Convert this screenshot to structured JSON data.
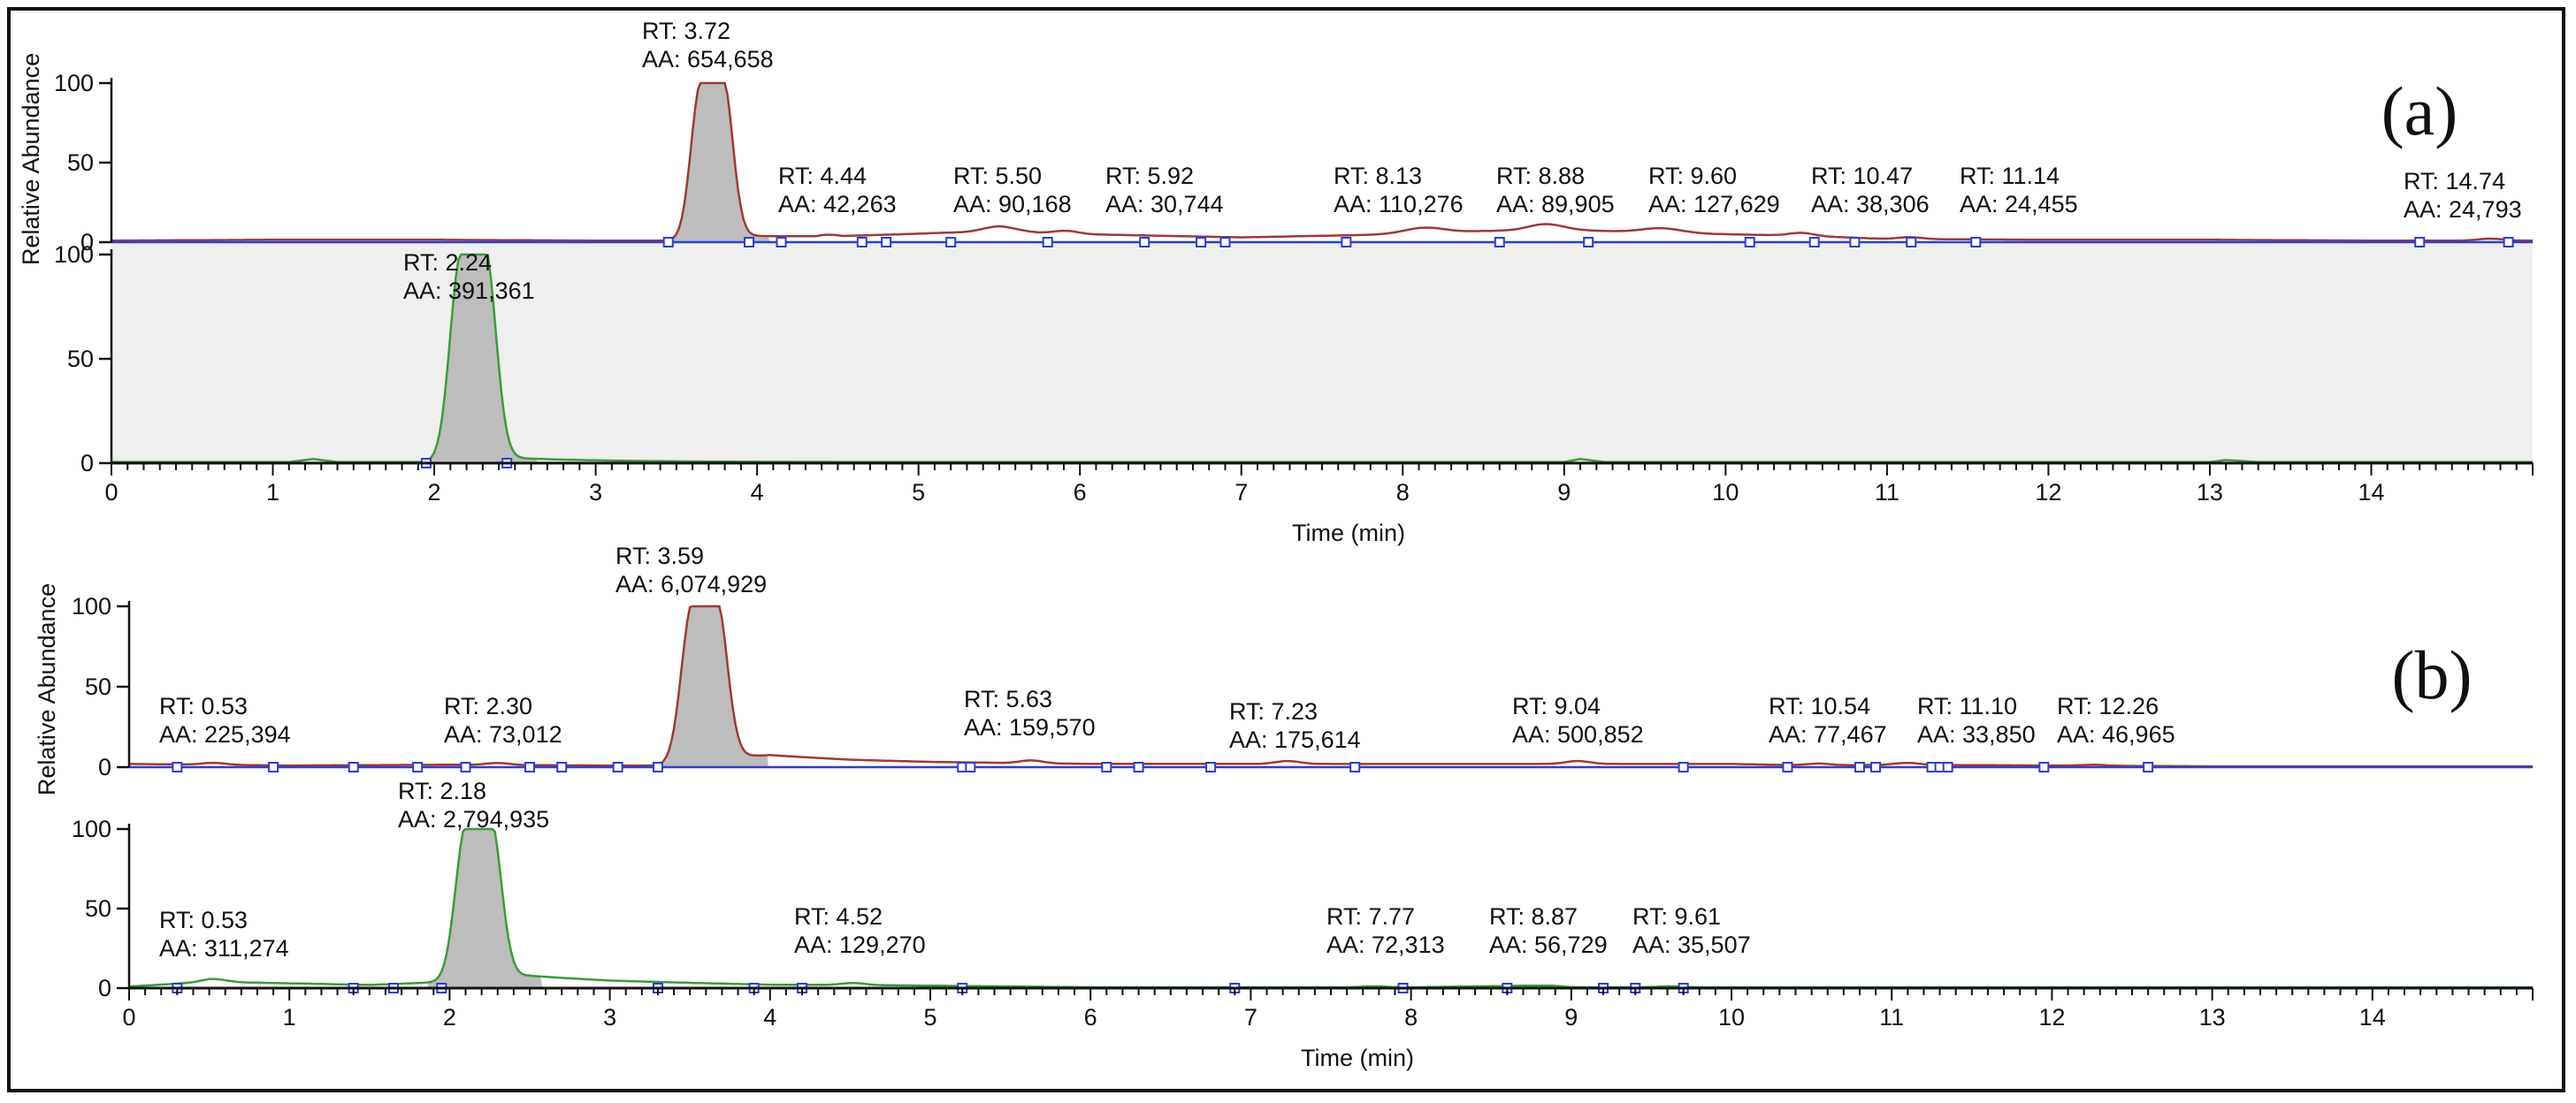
{
  "colors": {
    "trace_red": "#a03838",
    "trace_green": "#3c9a3c",
    "peak_fill": "#bdbdbd",
    "marker_blue": "#2a3fd0",
    "highlight_band": "#efefef",
    "axis": "#111111"
  },
  "chart_data": [
    {
      "panel": "(a)",
      "type": "line",
      "xlabel": "Time (min)",
      "ylabel": "Relative Abundance",
      "xlim": [
        0,
        15
      ],
      "x_ticks": [
        "0",
        "1",
        "2",
        "3",
        "4",
        "5",
        "6",
        "7",
        "8",
        "9",
        "10",
        "11",
        "12",
        "13",
        "14"
      ],
      "series": [
        {
          "name": "trace-a1",
          "color": "red",
          "ylim": [
            0,
            100
          ],
          "y_ticks": [
            "0",
            "50",
            "100"
          ],
          "baseline_noise": [
            [
              0,
              1
            ],
            [
              1,
              1.5
            ],
            [
              2,
              1.5
            ],
            [
              3,
              1
            ],
            [
              3.5,
              1
            ],
            [
              4.5,
              3
            ],
            [
              5,
              5
            ],
            [
              5.5,
              7
            ],
            [
              6,
              5
            ],
            [
              7,
              3
            ],
            [
              8,
              5
            ],
            [
              8.5,
              7
            ],
            [
              9,
              8
            ],
            [
              9.5,
              6
            ],
            [
              10,
              5
            ],
            [
              10.5,
              4
            ],
            [
              11,
              2
            ],
            [
              12,
              1.5
            ],
            [
              13,
              1.5
            ],
            [
              14,
              1
            ],
            [
              15,
              1
            ]
          ],
          "peaks": [
            {
              "rt": 3.72,
              "height": 100,
              "width": 0.38,
              "fill": true,
              "rt_label": "RT: 3.72",
              "aa_label": "AA: 654,658"
            },
            {
              "rt": 4.44,
              "height": 3,
              "width": 0.3,
              "fill": false,
              "rt_label": "RT: 4.44",
              "aa_label": "AA: 42,263"
            },
            {
              "rt": 5.5,
              "height": 5,
              "width": 0.4,
              "fill": false,
              "rt_label": "RT: 5.50",
              "aa_label": "AA: 90,168"
            },
            {
              "rt": 5.92,
              "height": 3,
              "width": 0.3,
              "fill": false,
              "rt_label": "RT: 5.92",
              "aa_label": "AA: 30,744"
            },
            {
              "rt": 8.13,
              "height": 6,
              "width": 0.5,
              "fill": false,
              "rt_label": "RT: 8.13",
              "aa_label": "AA: 110,276"
            },
            {
              "rt": 8.88,
              "height": 6,
              "width": 0.4,
              "fill": false,
              "rt_label": "RT: 8.88",
              "aa_label": "AA: 89,905"
            },
            {
              "rt": 9.6,
              "height": 5,
              "width": 0.5,
              "fill": false,
              "rt_label": "RT: 9.60",
              "aa_label": "AA: 127,629"
            },
            {
              "rt": 10.47,
              "height": 3,
              "width": 0.3,
              "fill": false,
              "rt_label": "RT: 10.47",
              "aa_label": "AA: 38,306"
            },
            {
              "rt": 11.14,
              "height": 2,
              "width": 0.3,
              "fill": false,
              "rt_label": "RT: 11.14",
              "aa_label": "AA: 24,455"
            },
            {
              "rt": 14.74,
              "height": 2,
              "width": 0.3,
              "fill": false,
              "rt_label": "RT: 14.74",
              "aa_label": "AA: 24,793"
            }
          ],
          "markers": [
            3.45,
            3.95,
            4.15,
            4.65,
            4.8,
            5.2,
            5.8,
            6.4,
            6.75,
            6.9,
            7.65,
            8.6,
            9.15,
            10.15,
            10.55,
            10.8,
            11.15,
            11.55,
            14.3,
            14.85
          ]
        },
        {
          "name": "trace-a2",
          "color": "green",
          "ylim": [
            0,
            100
          ],
          "y_ticks": [
            "0",
            "50",
            "100"
          ],
          "baseline_noise": [
            [
              0,
              0.5
            ],
            [
              1.1,
              0.5
            ],
            [
              1.25,
              2
            ],
            [
              1.4,
              0.5
            ],
            [
              2,
              0.5
            ],
            [
              2.4,
              0.5
            ],
            [
              9,
              0.5
            ],
            [
              9.1,
              2
            ],
            [
              9.25,
              0.5
            ],
            [
              13,
              0.5
            ],
            [
              13.1,
              1.5
            ],
            [
              13.3,
              0.5
            ],
            [
              15,
              0.5
            ]
          ],
          "peaks": [
            {
              "rt": 2.24,
              "height": 100,
              "width": 0.42,
              "fill": true,
              "rt_label": "RT: 2.24",
              "aa_label": "AA: 391,361"
            }
          ],
          "markers": [
            1.95,
            2.45
          ]
        }
      ]
    },
    {
      "panel": "(b)",
      "type": "line",
      "xlabel": "Time (min)",
      "ylabel": "Relative Abundance",
      "xlim": [
        0,
        15
      ],
      "x_ticks": [
        "0",
        "1",
        "2",
        "3",
        "4",
        "5",
        "6",
        "7",
        "8",
        "9",
        "10",
        "11",
        "12",
        "13",
        "14"
      ],
      "series": [
        {
          "name": "trace-b1",
          "color": "red",
          "ylim": [
            0,
            100
          ],
          "y_ticks": [
            "0",
            "50",
            "100"
          ],
          "baseline_noise": [
            [
              0,
              2
            ],
            [
              1,
              1
            ],
            [
              2,
              1.5
            ],
            [
              3,
              1
            ],
            [
              3.3,
              1
            ],
            [
              4,
              6
            ],
            [
              4.5,
              4
            ],
            [
              5,
              3
            ],
            [
              6,
              2
            ],
            [
              7,
              2
            ],
            [
              8,
              2
            ],
            [
              9,
              2
            ],
            [
              10,
              2
            ],
            [
              10.5,
              1
            ],
            [
              11,
              1.5
            ],
            [
              12,
              1
            ],
            [
              13,
              0.5
            ],
            [
              15,
              0.5
            ]
          ],
          "peaks": [
            {
              "rt": 0.53,
              "height": 2,
              "width": 0.3,
              "fill": false,
              "rt_label": "RT: 0.53",
              "aa_label": "AA: 225,394"
            },
            {
              "rt": 2.3,
              "height": 2,
              "width": 0.3,
              "fill": false,
              "rt_label": "RT: 2.30",
              "aa_label": "AA: 73,012"
            },
            {
              "rt": 3.59,
              "height": 100,
              "width": 0.42,
              "fill": true,
              "rt_label": "RT: 3.59",
              "aa_label": "AA: 6,074,929"
            },
            {
              "rt": 5.63,
              "height": 3,
              "width": 0.3,
              "fill": false,
              "rt_label": "RT: 5.63",
              "aa_label": "AA: 159,570"
            },
            {
              "rt": 7.23,
              "height": 3,
              "width": 0.3,
              "fill": false,
              "rt_label": "RT: 7.23",
              "aa_label": "AA: 175,614"
            },
            {
              "rt": 9.04,
              "height": 3,
              "width": 0.3,
              "fill": false,
              "rt_label": "RT: 9.04",
              "aa_label": "AA: 500,852"
            },
            {
              "rt": 10.54,
              "height": 2,
              "width": 0.3,
              "fill": false,
              "rt_label": "RT: 10.54",
              "aa_label": "AA: 77,467"
            },
            {
              "rt": 11.1,
              "height": 2,
              "width": 0.3,
              "fill": false,
              "rt_label": "RT: 11.10",
              "aa_label": "AA: 33,850"
            },
            {
              "rt": 12.26,
              "height": 1,
              "width": 0.3,
              "fill": false,
              "rt_label": "RT: 12.26",
              "aa_label": "AA: 46,965"
            }
          ],
          "markers": [
            0.3,
            0.9,
            1.4,
            1.8,
            2.1,
            2.5,
            2.7,
            3.05,
            3.3,
            5.2,
            5.25,
            6.1,
            6.3,
            6.75,
            7.65,
            9.7,
            10.35,
            10.8,
            10.9,
            11.25,
            11.3,
            11.35,
            11.95,
            12.6
          ]
        },
        {
          "name": "trace-b2",
          "color": "green",
          "ylim": [
            0,
            100
          ],
          "y_ticks": [
            "0",
            "50",
            "100"
          ],
          "baseline_noise": [
            [
              0,
              1
            ],
            [
              0.5,
              4
            ],
            [
              1,
              3
            ],
            [
              1.5,
              2
            ],
            [
              2.5,
              6
            ],
            [
              3,
              4
            ],
            [
              3.5,
              3
            ],
            [
              4,
              2
            ],
            [
              4.5,
              2
            ],
            [
              5,
              1.5
            ],
            [
              5.5,
              1
            ],
            [
              6,
              0.5
            ],
            [
              7,
              0.5
            ],
            [
              8,
              0.5
            ],
            [
              8.7,
              1.5
            ],
            [
              9,
              0.5
            ],
            [
              10,
              0.5
            ],
            [
              15,
              0.5
            ]
          ],
          "peaks": [
            {
              "rt": 0.53,
              "height": 3,
              "width": 0.3,
              "fill": false,
              "rt_label": "RT: 0.53",
              "aa_label": "AA: 311,274"
            },
            {
              "rt": 2.18,
              "height": 100,
              "width": 0.42,
              "fill": true,
              "rt_label": "RT: 2.18",
              "aa_label": "AA: 2,794,935"
            },
            {
              "rt": 4.52,
              "height": 2,
              "width": 0.3,
              "fill": false,
              "rt_label": "RT: 4.52",
              "aa_label": "AA: 129,270"
            },
            {
              "rt": 7.77,
              "height": 1,
              "width": 0.3,
              "fill": false,
              "rt_label": "RT: 7.77",
              "aa_label": "AA: 72,313"
            },
            {
              "rt": 8.87,
              "height": 1,
              "width": 0.3,
              "fill": false,
              "rt_label": "RT: 8.87",
              "aa_label": "AA: 56,729"
            },
            {
              "rt": 9.61,
              "height": 1,
              "width": 0.3,
              "fill": false,
              "rt_label": "RT: 9.61",
              "aa_label": "AA: 35,507"
            }
          ],
          "markers": [
            0.3,
            1.4,
            1.65,
            1.95,
            3.3,
            3.9,
            4.2,
            5.2,
            6.9,
            7.95,
            8.6,
            9.2,
            9.4,
            9.7
          ]
        }
      ]
    }
  ]
}
